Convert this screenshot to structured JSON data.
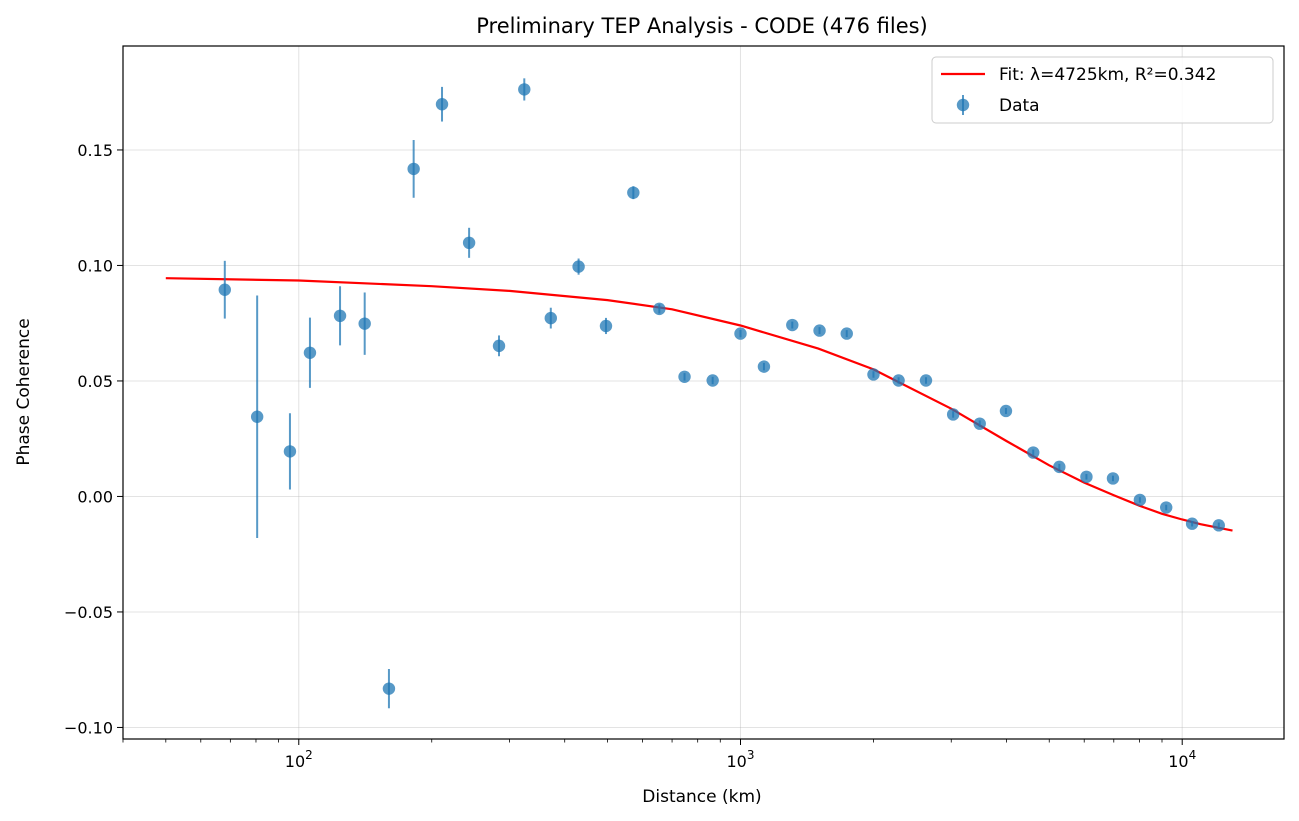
{
  "chart_data": {
    "type": "scatter",
    "title": "Preliminary TEP Analysis - CODE (476 files)",
    "xlabel": "Distance (km)",
    "ylabel": "Phase Coherence",
    "xscale": "log",
    "xlim": [
      40,
      17000
    ],
    "ylim": [
      -0.105,
      0.195
    ],
    "grid": true,
    "legend_position": "top-right",
    "x_tick_labels": [
      {
        "value": 100,
        "base": "10",
        "exp": "2"
      },
      {
        "value": 1000,
        "base": "10",
        "exp": "3"
      },
      {
        "value": 10000,
        "base": "10",
        "exp": "4"
      }
    ],
    "y_ticks": [
      -0.1,
      -0.05,
      0.0,
      0.05,
      0.1,
      0.15
    ],
    "y_tick_labels": [
      "−0.10",
      "−0.05",
      "0.00",
      "0.05",
      "0.10",
      "0.15"
    ],
    "legend": [
      {
        "label": "Fit: λ=4725km, R²=0.342",
        "kind": "line",
        "color": "#ff0000"
      },
      {
        "label": "Data",
        "kind": "marker",
        "color": "#1f77b4"
      }
    ],
    "series": [
      {
        "name": "Data",
        "kind": "errorbar",
        "color": "#1f77b4",
        "points": [
          {
            "x": 68,
            "y": 0.0895,
            "err": 0.0125
          },
          {
            "x": 80.5,
            "y": 0.0345,
            "err": 0.0525
          },
          {
            "x": 95.5,
            "y": 0.0195,
            "err": 0.0165
          },
          {
            "x": 106,
            "y": 0.0622,
            "err": 0.0152
          },
          {
            "x": 124,
            "y": 0.0782,
            "err": 0.0128
          },
          {
            "x": 141,
            "y": 0.0748,
            "err": 0.0135
          },
          {
            "x": 160,
            "y": -0.0832,
            "err": 0.0085
          },
          {
            "x": 182,
            "y": 0.1418,
            "err": 0.0125
          },
          {
            "x": 211,
            "y": 0.1698,
            "err": 0.0075
          },
          {
            "x": 243,
            "y": 0.1098,
            "err": 0.0065
          },
          {
            "x": 284,
            "y": 0.0652,
            "err": 0.0045
          },
          {
            "x": 324,
            "y": 0.1762,
            "err": 0.0048
          },
          {
            "x": 372,
            "y": 0.0772,
            "err": 0.0045
          },
          {
            "x": 430,
            "y": 0.0995,
            "err": 0.0035
          },
          {
            "x": 496,
            "y": 0.0738,
            "err": 0.0035
          },
          {
            "x": 572,
            "y": 0.1315,
            "err": 0.0028
          },
          {
            "x": 655,
            "y": 0.0812,
            "err": 0.002
          },
          {
            "x": 747,
            "y": 0.0518,
            "err": 0.0016
          },
          {
            "x": 865,
            "y": 0.0502,
            "err": 0.0016
          },
          {
            "x": 1000,
            "y": 0.0705,
            "err": 0.0016
          },
          {
            "x": 1130,
            "y": 0.0562,
            "err": 0.0016
          },
          {
            "x": 1310,
            "y": 0.0742,
            "err": 0.0015
          },
          {
            "x": 1510,
            "y": 0.0718,
            "err": 0.0015
          },
          {
            "x": 1740,
            "y": 0.0705,
            "err": 0.0015
          },
          {
            "x": 2000,
            "y": 0.0528,
            "err": 0.0014
          },
          {
            "x": 2280,
            "y": 0.0502,
            "err": 0.0014
          },
          {
            "x": 2630,
            "y": 0.0502,
            "err": 0.0014
          },
          {
            "x": 3030,
            "y": 0.0355,
            "err": 0.0014
          },
          {
            "x": 3480,
            "y": 0.0315,
            "err": 0.0014
          },
          {
            "x": 3990,
            "y": 0.037,
            "err": 0.0013
          },
          {
            "x": 4600,
            "y": 0.019,
            "err": 0.0013
          },
          {
            "x": 5270,
            "y": 0.0128,
            "err": 0.0013
          },
          {
            "x": 6070,
            "y": 0.0085,
            "err": 0.0012
          },
          {
            "x": 6970,
            "y": 0.0078,
            "err": 0.0012
          },
          {
            "x": 8020,
            "y": -0.0015,
            "err": 0.0012
          },
          {
            "x": 9200,
            "y": -0.0048,
            "err": 0.0012
          },
          {
            "x": 10530,
            "y": -0.0118,
            "err": 0.0012
          },
          {
            "x": 12100,
            "y": -0.0125,
            "err": 0.0012
          }
        ]
      },
      {
        "name": "Fit: λ=4725km, R²=0.342",
        "kind": "line",
        "color": "#ff0000",
        "points": [
          {
            "x": 50,
            "y": 0.0945
          },
          {
            "x": 100,
            "y": 0.0935
          },
          {
            "x": 200,
            "y": 0.091
          },
          {
            "x": 300,
            "y": 0.089
          },
          {
            "x": 500,
            "y": 0.085
          },
          {
            "x": 700,
            "y": 0.081
          },
          {
            "x": 1000,
            "y": 0.074
          },
          {
            "x": 1500,
            "y": 0.064
          },
          {
            "x": 2000,
            "y": 0.055
          },
          {
            "x": 3000,
            "y": 0.038
          },
          {
            "x": 4000,
            "y": 0.024
          },
          {
            "x": 5000,
            "y": 0.0135
          },
          {
            "x": 6000,
            "y": 0.006
          },
          {
            "x": 7000,
            "y": 0.0005
          },
          {
            "x": 8000,
            "y": -0.004
          },
          {
            "x": 9000,
            "y": -0.0075
          },
          {
            "x": 10000,
            "y": -0.01
          },
          {
            "x": 11000,
            "y": -0.012
          },
          {
            "x": 13000,
            "y": -0.0148
          }
        ]
      }
    ]
  }
}
